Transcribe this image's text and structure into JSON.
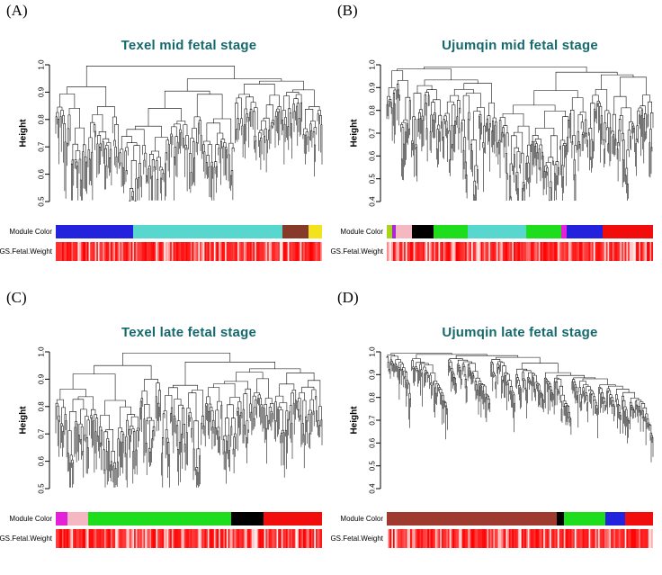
{
  "figure": {
    "background": "#ffffff",
    "title_color": "#15696d",
    "text_color": "#000000"
  },
  "chart_data": [
    {
      "type": "dendrogram",
      "panel": "(A)",
      "title": "Texel mid fetal stage",
      "ylabel": "Height",
      "ylim": [
        0.5,
        1.0
      ],
      "yticks": [
        0.5,
        0.6,
        0.7,
        0.8,
        0.9,
        1.0
      ],
      "rows": {
        "module": "Module Color",
        "gs": "GS.Fetal.Weight"
      },
      "module_segments": [
        {
          "name": "blue",
          "color": "#2323dd",
          "fraction": 0.29
        },
        {
          "name": "turquoise",
          "color": "#57d7ce",
          "fraction": 0.56
        },
        {
          "name": "brown",
          "color": "#87392a",
          "fraction": 0.1
        },
        {
          "name": "yellow",
          "color": "#f2e31d",
          "fraction": 0.05
        }
      ],
      "gs_row": {
        "base_color": "#ff0000",
        "pattern": "random-red-white-stripes",
        "seed": 101
      },
      "dendrogram_params": {
        "leaves": 240,
        "seed": 7,
        "spread": 0.062,
        "mode": "balanced"
      }
    },
    {
      "type": "dendrogram",
      "panel": "(B)",
      "title": "Ujumqin mid fetal stage",
      "ylabel": "Height",
      "ylim": [
        0.4,
        1.0
      ],
      "yticks": [
        0.4,
        0.5,
        0.6,
        0.7,
        0.8,
        0.9,
        1.0
      ],
      "rows": {
        "module": "Module Color",
        "gs": "GS.Fetal.Weight"
      },
      "module_segments": [
        {
          "name": "greenyellow",
          "color": "#a8d41c",
          "fraction": 0.02
        },
        {
          "name": "purple",
          "color": "#a82ad4",
          "fraction": 0.015
        },
        {
          "name": "pink",
          "color": "#f5b8c3",
          "fraction": 0.06
        },
        {
          "name": "black",
          "color": "#000000",
          "fraction": 0.08
        },
        {
          "name": "green",
          "color": "#1ddd1d",
          "fraction": 0.13
        },
        {
          "name": "turquoise",
          "color": "#57d7ce",
          "fraction": 0.22
        },
        {
          "name": "green2",
          "color": "#1ddd1d",
          "fraction": 0.13
        },
        {
          "name": "magenta",
          "color": "#e420d8",
          "fraction": 0.02
        },
        {
          "name": "blue",
          "color": "#2323dd",
          "fraction": 0.135
        },
        {
          "name": "red",
          "color": "#f20d0d",
          "fraction": 0.19
        }
      ],
      "gs_row": {
        "base_color": "#ff0000",
        "pattern": "random-red-white-stripes",
        "seed": 102
      },
      "dendrogram_params": {
        "leaves": 290,
        "seed": 13,
        "spread": 0.085,
        "mode": "balanced"
      }
    },
    {
      "type": "dendrogram",
      "panel": "(C)",
      "title": "Texel late fetal stage",
      "ylabel": "Height",
      "ylim": [
        0.5,
        1.0
      ],
      "yticks": [
        0.5,
        0.6,
        0.7,
        0.8,
        0.9,
        1.0
      ],
      "rows": {
        "module": "Module Color",
        "gs": "GS.Fetal.Weight"
      },
      "module_segments": [
        {
          "name": "magenta",
          "color": "#e420d8",
          "fraction": 0.045
        },
        {
          "name": "pink",
          "color": "#f5b8c3",
          "fraction": 0.075
        },
        {
          "name": "green",
          "color": "#1ddd1d",
          "fraction": 0.54
        },
        {
          "name": "black",
          "color": "#000000",
          "fraction": 0.12
        },
        {
          "name": "red",
          "color": "#f20d0d",
          "fraction": 0.22
        }
      ],
      "gs_row": {
        "base_color": "#ff0000",
        "pattern": "random-red-white-stripes",
        "seed": 103
      },
      "dendrogram_params": {
        "leaves": 270,
        "seed": 19,
        "spread": 0.068,
        "mode": "balanced"
      }
    },
    {
      "type": "dendrogram",
      "panel": "(D)",
      "title": "Ujumqin late fetal stage",
      "ylabel": "Height",
      "ylim": [
        0.4,
        1.0
      ],
      "yticks": [
        0.4,
        0.5,
        0.6,
        0.7,
        0.8,
        0.9,
        1.0
      ],
      "rows": {
        "module": "Module Color",
        "gs": "GS.Fetal.Weight"
      },
      "module_segments": [
        {
          "name": "brown",
          "color": "#9e3a30",
          "fraction": 0.64
        },
        {
          "name": "black",
          "color": "#000000",
          "fraction": 0.025
        },
        {
          "name": "green",
          "color": "#1ddd1d",
          "fraction": 0.155
        },
        {
          "name": "blue",
          "color": "#2323dd",
          "fraction": 0.075
        },
        {
          "name": "red",
          "color": "#f20d0d",
          "fraction": 0.105
        }
      ],
      "gs_row": {
        "base_color": "#ff0000",
        "pattern": "random-red-white-stripes",
        "seed": 104
      },
      "dendrogram_params": {
        "leaves": 300,
        "seed": 29,
        "spread": 0.042,
        "mode": "chain"
      }
    }
  ]
}
